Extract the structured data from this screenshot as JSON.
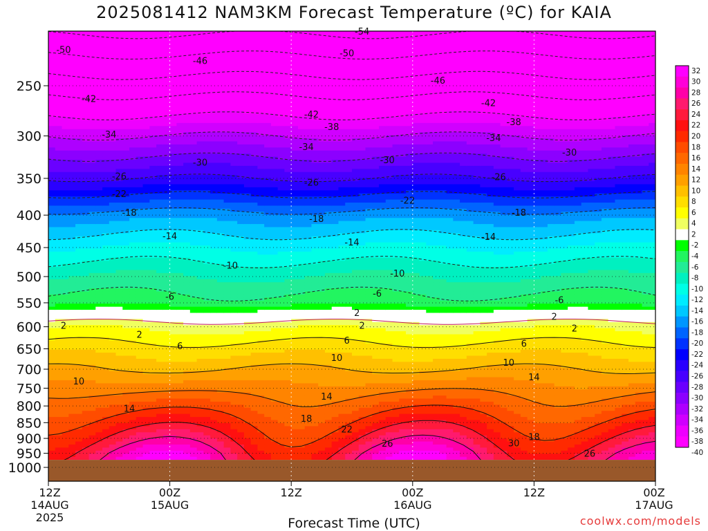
{
  "chart_data": {
    "type": "heatmap",
    "title": "2025081412 NAM3KM Forecast Temperature (ºC) for KAIA",
    "xlabel": "Forecast Time (UTC)",
    "credit": "coolwx.com/models",
    "x_ticks": [
      {
        "hours": 0,
        "lines": [
          "12Z",
          "14AUG",
          "2025"
        ]
      },
      {
        "hours": 12,
        "lines": [
          "00Z",
          "15AUG"
        ]
      },
      {
        "hours": 24,
        "lines": [
          "12Z"
        ]
      },
      {
        "hours": 36,
        "lines": [
          "00Z",
          "16AUG"
        ]
      },
      {
        "hours": 48,
        "lines": [
          "12Z"
        ]
      },
      {
        "hours": 60,
        "lines": [
          "00Z",
          "17AUG"
        ]
      }
    ],
    "y_ticks": [
      250,
      300,
      350,
      400,
      450,
      500,
      550,
      600,
      650,
      700,
      750,
      800,
      850,
      900,
      950,
      1000
    ],
    "ylim_pressure_hPa": [
      200,
      1000
    ],
    "surface_pressure_hPa": 973,
    "colorbar_ticks": [
      32,
      30,
      28,
      26,
      24,
      22,
      20,
      18,
      16,
      14,
      12,
      10,
      8,
      6,
      4,
      2,
      -2,
      -4,
      -6,
      -8,
      -10,
      -12,
      -14,
      -16,
      -18,
      -20,
      -22,
      -24,
      -26,
      -28,
      -30,
      -32,
      -34,
      -36,
      -38,
      -40
    ],
    "colorbar_colors": [
      "#ff00ff",
      "#ff00d8",
      "#ff00a8",
      "#ff1a6e",
      "#ff1a3c",
      "#ff1010",
      "#ff2a00",
      "#ff4c00",
      "#ff6800",
      "#ff8400",
      "#ffa000",
      "#ffc000",
      "#ffde00",
      "#ffff00",
      "#f0ff60",
      "#ffffff",
      "#00ff00",
      "#22f560",
      "#22ec96",
      "#00f0c0",
      "#00ffe6",
      "#00ecff",
      "#00c8ff",
      "#0096ff",
      "#0064ff",
      "#0032ff",
      "#0000ff",
      "#2a00ff",
      "#4800ff",
      "#6a00ff",
      "#8c00ff",
      "#ae00ff",
      "#d000ff",
      "#ee00ff",
      "#ff00ff"
    ],
    "levels": [
      {
        "name": "500 hPa",
        "values": [
          -10,
          -10,
          -10,
          -10,
          -10,
          -10
        ]
      },
      {
        "name": "600 hPa",
        "values": [
          2,
          2,
          2,
          2,
          2,
          2
        ]
      },
      {
        "name": "850 hPa",
        "values": [
          18,
          20,
          20,
          22,
          22,
          22
        ]
      }
    ],
    "contour_labels": [
      {
        "v": "-54",
        "h": 31,
        "p": 205
      },
      {
        "v": "-50",
        "h": 1.5,
        "p": 219
      },
      {
        "v": "-50",
        "h": 29.5,
        "p": 222
      },
      {
        "v": "-46",
        "h": 15,
        "p": 228
      },
      {
        "v": "-46",
        "h": 38.5,
        "p": 245
      },
      {
        "v": "-42",
        "h": 4,
        "p": 262
      },
      {
        "v": "-42",
        "h": 26,
        "p": 277
      },
      {
        "v": "-42",
        "h": 43.5,
        "p": 266
      },
      {
        "v": "-38",
        "h": 28,
        "p": 290
      },
      {
        "v": "-38",
        "h": 46,
        "p": 285
      },
      {
        "v": "-34",
        "h": 6,
        "p": 298
      },
      {
        "v": "-34",
        "h": 25.5,
        "p": 312
      },
      {
        "v": "-34",
        "h": 44,
        "p": 302
      },
      {
        "v": "-30",
        "h": 15,
        "p": 330
      },
      {
        "v": "-30",
        "h": 33.5,
        "p": 327
      },
      {
        "v": "-30",
        "h": 51.5,
        "p": 318
      },
      {
        "v": "-26",
        "h": 7,
        "p": 347
      },
      {
        "v": "-26",
        "h": 26,
        "p": 355
      },
      {
        "v": "-26",
        "h": 44.5,
        "p": 348
      },
      {
        "v": "-22",
        "h": 7,
        "p": 370
      },
      {
        "v": "-22",
        "h": 35.5,
        "p": 379
      },
      {
        "v": "-18",
        "h": 8,
        "p": 396
      },
      {
        "v": "-18",
        "h": 26.5,
        "p": 405
      },
      {
        "v": "-18",
        "h": 46.5,
        "p": 396
      },
      {
        "v": "-14",
        "h": 12,
        "p": 431
      },
      {
        "v": "-14",
        "h": 30,
        "p": 441
      },
      {
        "v": "-14",
        "h": 43.5,
        "p": 432
      },
      {
        "v": "-10",
        "h": 18,
        "p": 480
      },
      {
        "v": "-10",
        "h": 34.5,
        "p": 494
      },
      {
        "v": "-6",
        "h": 12,
        "p": 537
      },
      {
        "v": "-6",
        "h": 32.5,
        "p": 531
      },
      {
        "v": "-6",
        "h": 50.5,
        "p": 544
      },
      {
        "v": "2",
        "h": 1.5,
        "p": 597
      },
      {
        "v": "2",
        "h": 30.5,
        "p": 570
      },
      {
        "v": "2",
        "h": 50,
        "p": 578
      },
      {
        "v": "2",
        "h": 9,
        "p": 617
      },
      {
        "v": "2",
        "h": 31,
        "p": 597
      },
      {
        "v": "2",
        "h": 52,
        "p": 603
      },
      {
        "v": "6",
        "h": 13,
        "p": 643
      },
      {
        "v": "6",
        "h": 29.5,
        "p": 630
      },
      {
        "v": "6",
        "h": 47,
        "p": 637
      },
      {
        "v": "10",
        "h": 3,
        "p": 731
      },
      {
        "v": "10",
        "h": 28.5,
        "p": 671
      },
      {
        "v": "10",
        "h": 45.5,
        "p": 683
      },
      {
        "v": "14",
        "h": 8,
        "p": 807
      },
      {
        "v": "14",
        "h": 27.5,
        "p": 772
      },
      {
        "v": "14",
        "h": 48,
        "p": 720
      },
      {
        "v": "18",
        "h": 25.5,
        "p": 837
      },
      {
        "v": "18",
        "h": 48,
        "p": 894
      },
      {
        "v": "22",
        "h": 29.5,
        "p": 870
      },
      {
        "v": "26",
        "h": 33.5,
        "p": 916
      },
      {
        "v": "26",
        "h": 53.5,
        "p": 950
      },
      {
        "v": "30",
        "h": 46,
        "p": 915
      }
    ]
  }
}
